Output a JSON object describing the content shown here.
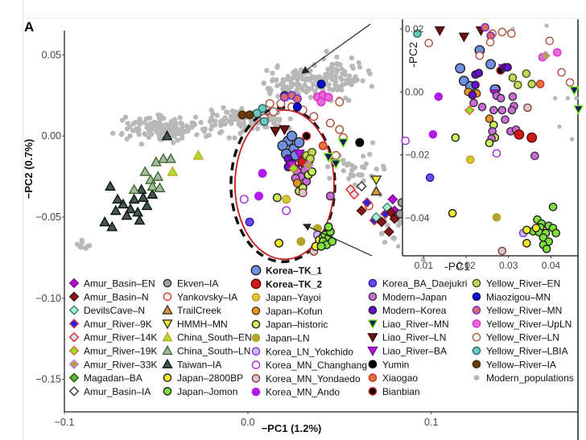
{
  "panel_label": "A",
  "chart_data": {
    "type": "scatter",
    "title": "",
    "xlabel": "−PC1 (1.2%)",
    "ylabel": "−PC2 (0.7%)",
    "xlim": [
      -0.1,
      0.18
    ],
    "ylim": [
      -0.17,
      0.065
    ],
    "xticks": [
      {
        "v": -0.1,
        "label": "−0.1"
      },
      {
        "v": 0.0,
        "label": "0.0"
      },
      {
        "v": 0.1,
        "label": "0.1"
      }
    ],
    "yticks": [
      {
        "v": 0.05,
        "label": "0.05"
      },
      {
        "v": 0.0,
        "label": "0.00"
      },
      {
        "v": -0.05,
        "label": "−0.05"
      },
      {
        "v": -0.1,
        "label": "−0.10"
      },
      {
        "v": -0.15,
        "label": "−0.15"
      }
    ],
    "grid": false,
    "legend_position": "bottom-inside",
    "groups": {
      "Amur_Basin-EN": {
        "shape": "diamond",
        "fill": "#b30fd6",
        "stroke": "#7a0a90"
      },
      "Amur_Basin-N": {
        "shape": "diamond",
        "fill": "#8b1818",
        "stroke": "#4a0c0c"
      },
      "DevilsCave-N": {
        "shape": "diamond",
        "fill": "#a8f0d8",
        "stroke": "#3d7d65"
      },
      "Amur_River-9K": {
        "shape": "diamond",
        "fill": "#2a1ef5",
        "stroke": "#c13a3a"
      },
      "Amur_River-14K": {
        "shape": "diamond",
        "fill": "#dde3f0",
        "stroke": "#e02828"
      },
      "Amur_River-19K": {
        "shape": "diamond",
        "fill": "#8ee62a",
        "stroke": "#e0632b"
      },
      "Amur_River-33K": {
        "shape": "diamond",
        "fill": "#b5a236",
        "stroke": "#c17ae0"
      },
      "Magadan-BA": {
        "shape": "diamond",
        "fill": "#5cb82a",
        "stroke": "#2a5a12"
      },
      "Amur_Basin-IA": {
        "shape": "diamond",
        "fill": "#ffffff",
        "stroke": "#333333"
      },
      "Ekven-IA": {
        "shape": "circle",
        "fill": "#a0a0a0",
        "stroke": "#333333"
      },
      "Yankovsky-IA": {
        "shape": "circle",
        "fill": "#ffffff",
        "stroke": "#d93a2b"
      },
      "TrailCreek": {
        "shape": "triangle",
        "fill": "#e0962a",
        "stroke": "#333333"
      },
      "HMMH-MN": {
        "shape": "triangle-down",
        "fill": "#f2e82a",
        "stroke": "#333333"
      },
      "China_South-EN": {
        "shape": "triangle",
        "fill": "#a7e02a",
        "stroke": "#c9a62a"
      },
      "China_South-LN": {
        "shape": "triangle",
        "fill": "#a9b8a9",
        "stroke": "#3d6b2a"
      },
      "Taiwan-IA": {
        "shape": "triangle",
        "fill": "#3f5a4d",
        "stroke": "#111111"
      },
      "Japan-2800BP": {
        "shape": "circle",
        "fill": "#f2ea2a",
        "stroke": "#222222"
      },
      "Japan-Jomon": {
        "shape": "circle",
        "fill": "#7ee03a",
        "stroke": "#222222"
      },
      "Korea-TK_1": {
        "shape": "circle-big",
        "fill": "#6f8fe0",
        "stroke": "#222222"
      },
      "Korea-TK_2": {
        "shape": "circle-big",
        "fill": "#d11a1a",
        "stroke": "#6a0a0a"
      },
      "Japan-Yayoi": {
        "shape": "circle",
        "fill": "#c9d12a",
        "stroke": "#e08a2a"
      },
      "Japan-Kofun": {
        "shape": "circle",
        "fill": "#e2962a",
        "stroke": "#5a3a12"
      },
      "Japan-historic": {
        "shape": "circle",
        "fill": "#c9f25a",
        "stroke": "#222222"
      },
      "Japan-LN": {
        "shape": "circle",
        "fill": "#b3a42a",
        "stroke": "#b3a42a"
      },
      "Korea_LN_Yokchido": {
        "shape": "circle",
        "fill": "#c7c0f2",
        "stroke": "#8a2ae0"
      },
      "Korea_MN_Changhang": {
        "shape": "circle",
        "fill": "#ffffff",
        "stroke": "#a02ae0"
      },
      "Korea_MN_Yondaedo": {
        "shape": "circle",
        "fill": "#d9c9c9",
        "stroke": "#8a3a3a"
      },
      "Korea_MN_Ando": {
        "shape": "circle",
        "fill": "#b11ae8",
        "stroke": "#b11ae8"
      },
      "Korea_BA_Daejukri": {
        "shape": "circle",
        "fill": "#6a4ae8",
        "stroke": "#2a1ab0"
      },
      "Modern-Japan": {
        "shape": "circle",
        "fill": "#cc6ad9",
        "stroke": "#333333"
      },
      "Modern-Korea": {
        "shape": "circle",
        "fill": "#6a0ad9",
        "stroke": "#222222"
      },
      "Liao_River-MN": {
        "shape": "triangle-down",
        "fill": "#141a5a",
        "stroke": "#7ef02a"
      },
      "Liao_River-LN": {
        "shape": "triangle-down",
        "fill": "#6a1414",
        "stroke": "#3a0a0a"
      },
      "Liao_River-BA": {
        "shape": "triangle-down",
        "fill": "#b51ae0",
        "stroke": "#7a0a9a"
      },
      "Yumin": {
        "shape": "circle",
        "fill": "#000000",
        "stroke": "#000000"
      },
      "Xiaogao": {
        "shape": "circle",
        "fill": "#e2733a",
        "stroke": "#c9302a"
      },
      "Bianbian": {
        "shape": "circle",
        "fill": "#000000",
        "stroke": "#d11a1a"
      },
      "Yellow_River-EN": {
        "shape": "circle",
        "fill": "#c9d15a",
        "stroke": "#3a5a1a"
      },
      "Miaozigou-MN": {
        "shape": "circle",
        "fill": "#0a0ad9",
        "stroke": "#0a0a5a"
      },
      "Yellow_River-MN": {
        "shape": "circle",
        "fill": "#d96a6a",
        "stroke": "#6a2ad9"
      },
      "Yellow_River-UpLN": {
        "shape": "circle",
        "fill": "#e86ad9",
        "stroke": "#e02ad1"
      },
      "Yellow_River-LN": {
        "shape": "circle",
        "fill": "#ffffff",
        "stroke": "#b0503a"
      },
      "Yellow_River-LBIA": {
        "shape": "circle",
        "fill": "#6ac9c0",
        "stroke": "#2a6a6a"
      },
      "Yellow-River-IA": {
        "shape": "circle",
        "fill": "#6a3a12",
        "stroke": "#4a2a0a"
      },
      "Modern_populations": {
        "shape": "dot",
        "fill": "#b8b8b8",
        "stroke": "none"
      }
    },
    "legend_columns": [
      [
        "Amur_Basin-EN",
        "Amur_Basin-N",
        "DevilsCave-N",
        "Amur_River-9K",
        "Amur_River-14K",
        "Amur_River-19K",
        "Amur_River-33K",
        "Magadan-BA",
        "Amur_Basin-IA"
      ],
      [
        "Ekven-IA",
        "Yankovsky-IA",
        "TrailCreek",
        "HMMH-MN",
        "China_South-EN",
        "China_South-LN",
        "Taiwan-IA",
        "Japan-2800BP",
        "Japan-Jomon"
      ],
      [
        "Korea-TK_1",
        "Korea-TK_2",
        "Japan-Yayoi",
        "Japan-Kofun",
        "Japan-historic",
        "Japan-LN",
        "Korea_LN_Yokchido",
        "Korea_MN_Changhang",
        "Korea_MN_Yondaedo",
        "Korea_MN_Ando"
      ],
      [
        "Korea_BA_Daejukri",
        "Modern-Japan",
        "Modern-Korea",
        "Liao_River-MN",
        "Liao_River-LN",
        "Liao_River-BA",
        "Yumin",
        "Xiaogao",
        "Bianbian"
      ],
      [
        "Yellow_River-EN",
        "Miaozigou-MN",
        "Yellow_River-MN",
        "Yellow_River-UpLN",
        "Yellow_River-LN",
        "Yellow_River-LBIA",
        "Yellow-River-IA",
        "Modern_populations"
      ]
    ],
    "bold_legend_entries": [
      "Korea-TK_1",
      "Korea-TK_2"
    ],
    "points": [
      [
        "Taiwan-IA",
        -0.075,
        -0.031
      ],
      [
        "Taiwan-IA",
        -0.058,
        -0.033
      ],
      [
        "Taiwan-IA",
        -0.062,
        -0.039
      ],
      [
        "Taiwan-IA",
        -0.068,
        -0.042
      ],
      [
        "Taiwan-IA",
        -0.064,
        -0.045
      ],
      [
        "Taiwan-IA",
        -0.072,
        -0.046
      ],
      [
        "Taiwan-IA",
        -0.06,
        -0.047
      ],
      [
        "Taiwan-IA",
        -0.066,
        -0.049
      ],
      [
        "Taiwan-IA",
        -0.078,
        -0.053
      ],
      [
        "Taiwan-IA",
        -0.059,
        -0.052
      ],
      [
        "Taiwan-IA",
        -0.057,
        -0.038
      ],
      [
        "Taiwan-IA",
        -0.052,
        -0.036
      ],
      [
        "Taiwan-IA",
        -0.055,
        -0.043
      ],
      [
        "Taiwan-IA",
        -0.071,
        -0.039
      ],
      [
        "Taiwan-IA",
        -0.074,
        -0.056
      ],
      [
        "Taiwan-IA",
        -0.044,
        0.0
      ],
      [
        "China_South-LN",
        -0.053,
        -0.027
      ],
      [
        "China_South-LN",
        -0.049,
        -0.025
      ],
      [
        "China_South-LN",
        -0.056,
        -0.022
      ],
      [
        "China_South-LN",
        -0.05,
        -0.016
      ],
      [
        "China_South-LN",
        -0.046,
        -0.014
      ],
      [
        "China_South-LN",
        -0.042,
        -0.014
      ],
      [
        "China_South-LN",
        -0.052,
        -0.031
      ],
      [
        "China_South-LN",
        -0.048,
        -0.032
      ],
      [
        "China_South-LN",
        -0.062,
        -0.033
      ],
      [
        "China_South-EN",
        -0.041,
        -0.022
      ],
      [
        "China_South-EN",
        -0.027,
        -0.012
      ],
      [
        "Korea-TK_1",
        0.022,
        -0.003
      ],
      [
        "Korea-TK_1",
        0.019,
        -0.006
      ],
      [
        "Korea-TK_1",
        0.025,
        -0.008
      ],
      [
        "Korea-TK_1",
        0.028,
        -0.004
      ],
      [
        "Korea-TK_1",
        0.021,
        -0.011
      ],
      [
        "Korea-TK_1",
        0.026,
        -0.012
      ],
      [
        "Korea-TK_1",
        0.024,
        0.0
      ],
      [
        "Korea-TK_2",
        0.031,
        -0.013
      ],
      [
        "Korea-TK_2",
        0.033,
        -0.015
      ],
      [
        "Korea-TK_2",
        0.03,
        -0.016
      ],
      [
        "Modern-Korea",
        0.022,
        -0.014
      ],
      [
        "Modern-Korea",
        0.024,
        -0.017
      ],
      [
        "Modern-Korea",
        0.022,
        -0.019
      ],
      [
        "Modern-Korea",
        0.026,
        -0.02
      ],
      [
        "Modern-Korea",
        0.02,
        0.025
      ],
      [
        "Modern-Japan",
        0.027,
        -0.022
      ],
      [
        "Modern-Japan",
        0.029,
        -0.025
      ],
      [
        "Modern-Japan",
        0.031,
        -0.021
      ],
      [
        "Modern-Japan",
        0.026,
        -0.026
      ],
      [
        "Modern-Japan",
        0.032,
        -0.028
      ],
      [
        "Modern-Japan",
        0.045,
        -0.037
      ],
      [
        "Japan-Kofun",
        0.029,
        -0.031
      ],
      [
        "Japan-Kofun",
        0.027,
        -0.029
      ],
      [
        "Japan-historic",
        0.028,
        -0.034
      ],
      [
        "Japan-historic",
        0.03,
        -0.032
      ],
      [
        "Japan-historic",
        0.033,
        -0.024
      ],
      [
        "Japan-historic",
        0.035,
        -0.022
      ],
      [
        "Japan-historic",
        0.016,
        -0.038
      ],
      [
        "Japan-Yayoi",
        0.021,
        -0.039
      ],
      [
        "Japan-LN",
        0.038,
        -0.057
      ],
      [
        "Korea_MN_Ando",
        0.008,
        -0.023
      ],
      [
        "Korea_MN_Ando",
        0.006,
        -0.037
      ],
      [
        "Korea_LN_Yokchido",
        0.038,
        -0.061
      ],
      [
        "Korea_MN_Changhang",
        -0.002,
        -0.039
      ],
      [
        "Korea_MN_Changhang",
        0.021,
        -0.046
      ],
      [
        "Korea_MN_Yondaedo",
        0.036,
        -0.071
      ],
      [
        "Korea_MN_Yondaedo",
        0.03,
        -0.035
      ],
      [
        "Korea_BA_Daejukri",
        0.001,
        -0.053
      ],
      [
        "Japan-2800BP",
        0.017,
        -0.066
      ],
      [
        "Japan-2800BP",
        0.039,
        -0.064
      ],
      [
        "Japan-2800BP",
        0.041,
        -0.062
      ],
      [
        "Japan-2800BP",
        0.037,
        -0.068
      ],
      [
        "Japan-Jomon",
        0.042,
        -0.061
      ],
      [
        "Japan-Jomon",
        0.044,
        -0.063
      ],
      [
        "Japan-Jomon",
        0.041,
        -0.065
      ],
      [
        "Japan-Jomon",
        0.045,
        -0.059
      ],
      [
        "Japan-Jomon",
        0.043,
        -0.067
      ],
      [
        "Japan-Jomon",
        0.04,
        -0.068
      ],
      [
        "Japan-Jomon",
        0.046,
        -0.065
      ],
      [
        "Japan-Jomon",
        0.044,
        -0.056
      ],
      [
        "Japan-LN",
        0.029,
        -0.065
      ],
      [
        "Yellow_River-LN",
        0.014,
        0.015
      ],
      [
        "Yellow_River-LN",
        0.018,
        0.02
      ],
      [
        "Yellow_River-LN",
        0.024,
        0.018
      ],
      [
        "Yellow_River-LN",
        0.03,
        0.016
      ],
      [
        "Yellow_River-LN",
        0.036,
        0.012
      ],
      [
        "Yellow_River-LN",
        0.045,
        0.008
      ],
      [
        "Yellow_River-LN",
        0.05,
        0.004
      ],
      [
        "Yellow_River-LN",
        0.052,
        -0.001
      ],
      [
        "Yellow_River-LN",
        0.048,
        -0.012
      ],
      [
        "Yellow_River-LN",
        0.05,
        0.021
      ],
      [
        "Yellow_River-LN",
        0.012,
        0.02
      ],
      [
        "Yellow_River-LN",
        0.009,
        0.011
      ],
      [
        "Yellow_River-UpLN",
        0.038,
        0.024
      ],
      [
        "Yellow_River-UpLN",
        0.041,
        0.025
      ],
      [
        "Yellow_River-UpLN",
        0.044,
        0.024
      ],
      [
        "Yellow_River-UpLN",
        0.04,
        0.021
      ],
      [
        "Yellow_River-MN",
        0.02,
        0.024
      ],
      [
        "Yellow_River-MN",
        0.024,
        0.025
      ],
      [
        "Yellow_River-MN",
        0.027,
        0.023
      ],
      [
        "Miaozigou-MN",
        0.04,
        0.032
      ],
      [
        "Miaozigou-MN",
        0.027,
        0.018
      ],
      [
        "Yellow_River-LBIA",
        0.008,
        0.017
      ],
      [
        "Yellow_River-LBIA",
        0.005,
        0.014
      ],
      [
        "Yellow_River-LBIA",
        0.009,
        0.009
      ],
      [
        "Yellow-River-IA",
        -0.003,
        0.013
      ],
      [
        "Yellow-River-IA",
        0.001,
        0.013
      ],
      [
        "Yellow_River-EN",
        0.032,
        -0.012
      ],
      [
        "Yellow_River-EN",
        0.035,
        -0.01
      ],
      [
        "Yellow_River-EN",
        0.034,
        -0.014
      ],
      [
        "Liao_River-LN",
        0.015,
        0.003
      ],
      [
        "Liao_River-LN",
        0.02,
        0.004
      ],
      [
        "Liao_River-BA",
        0.028,
        -0.011
      ],
      [
        "Liao_River-BA",
        0.024,
        -0.018
      ],
      [
        "Liao_River-MN",
        0.044,
        -0.013
      ],
      [
        "Liao_River-MN",
        0.048,
        -0.017
      ],
      [
        "Liao_River-MN",
        0.052,
        -0.004
      ],
      [
        "Yumin",
        0.061,
        -0.004
      ],
      [
        "Xiaogao",
        0.041,
        -0.006
      ],
      [
        "Bianbian",
        0.032,
        0.0
      ],
      [
        "HMMH-MN",
        0.07,
        -0.027
      ],
      [
        "TrailCreek",
        0.07,
        -0.034
      ],
      [
        "Amur_Basin-IA",
        0.062,
        -0.031
      ],
      [
        "Amur_River-14K",
        0.056,
        -0.033
      ],
      [
        "Amur_River-14K",
        0.058,
        -0.036
      ],
      [
        "Yankovsky-IA",
        0.066,
        -0.043
      ],
      [
        "Amur_Basin-EN",
        0.079,
        -0.039
      ],
      [
        "Amur_Basin-EN",
        0.08,
        -0.046
      ],
      [
        "Amur_River-9K",
        0.065,
        -0.041
      ],
      [
        "Amur_River-9K",
        0.069,
        -0.052
      ],
      [
        "Amur_River-9K",
        0.075,
        -0.048
      ],
      [
        "DevilsCave-N",
        0.076,
        -0.044
      ],
      [
        "DevilsCave-N",
        0.07,
        -0.05
      ],
      [
        "Amur_Basin-N",
        0.062,
        -0.046
      ],
      [
        "Amur_Basin-N",
        0.078,
        -0.047
      ],
      [
        "Amur_Basin-N",
        0.073,
        -0.053
      ],
      [
        "Amur_Basin-N",
        0.08,
        -0.051
      ],
      [
        "Amur_Basin-N",
        0.077,
        -0.059
      ],
      [
        "Ekven-IA",
        0.084,
        -0.041
      ],
      [
        "Ekven-IA",
        0.089,
        -0.041
      ],
      [
        "Ekven-IA",
        0.086,
        -0.045
      ],
      [
        "Ekven-IA",
        0.09,
        -0.046
      ],
      [
        "Ekven-IA",
        0.083,
        -0.048
      ],
      [
        "Magadan-BA",
        0.096,
        -0.051
      ],
      [
        "Magadan-BA",
        0.093,
        -0.061
      ],
      [
        "Amur_River-19K",
        0.025,
        -0.02
      ],
      [
        "Amur_River-33K",
        0.033,
        -0.018
      ]
    ],
    "modern_clusters": [
      {
        "cx": -0.045,
        "cy": 0.005,
        "sx": 0.018,
        "sy": 0.006,
        "n": 150
      },
      {
        "cx": 0.0,
        "cy": 0.01,
        "sx": 0.02,
        "sy": 0.006,
        "n": 110
      },
      {
        "cx": 0.03,
        "cy": 0.032,
        "sx": 0.02,
        "sy": 0.008,
        "n": 120
      },
      {
        "cx": 0.05,
        "cy": 0.04,
        "sx": 0.012,
        "sy": 0.009,
        "n": 50
      },
      {
        "cx": 0.06,
        "cy": -0.02,
        "sx": 0.015,
        "sy": 0.012,
        "n": 35
      },
      {
        "cx": 0.085,
        "cy": -0.057,
        "sx": 0.012,
        "sy": 0.01,
        "n": 25
      },
      {
        "cx": -0.09,
        "cy": -0.068,
        "sx": 0.004,
        "sy": 0.003,
        "n": 10
      }
    ],
    "highlight_ellipse": {
      "cx": 0.02,
      "cy": -0.03,
      "rx": 0.027,
      "ry": 0.046
    },
    "inset": {
      "xlabel": "-PC1",
      "ylabel": "-PC2",
      "xlim": [
        0.005,
        0.046
      ],
      "ylim": [
        -0.052,
        0.021
      ],
      "xticks": [
        {
          "v": 0.01,
          "label": "0.01"
        },
        {
          "v": 0.02,
          "label": "0.02"
        },
        {
          "v": 0.03,
          "label": "0.03"
        },
        {
          "v": 0.04,
          "label": "0.04"
        }
      ],
      "yticks": [
        {
          "v": 0.02,
          "label": "0.02"
        },
        {
          "v": 0.0,
          "label": "0.00"
        },
        {
          "v": -0.02,
          "label": "−0.02"
        },
        {
          "v": -0.04,
          "label": "−0.04"
        }
      ]
    }
  }
}
